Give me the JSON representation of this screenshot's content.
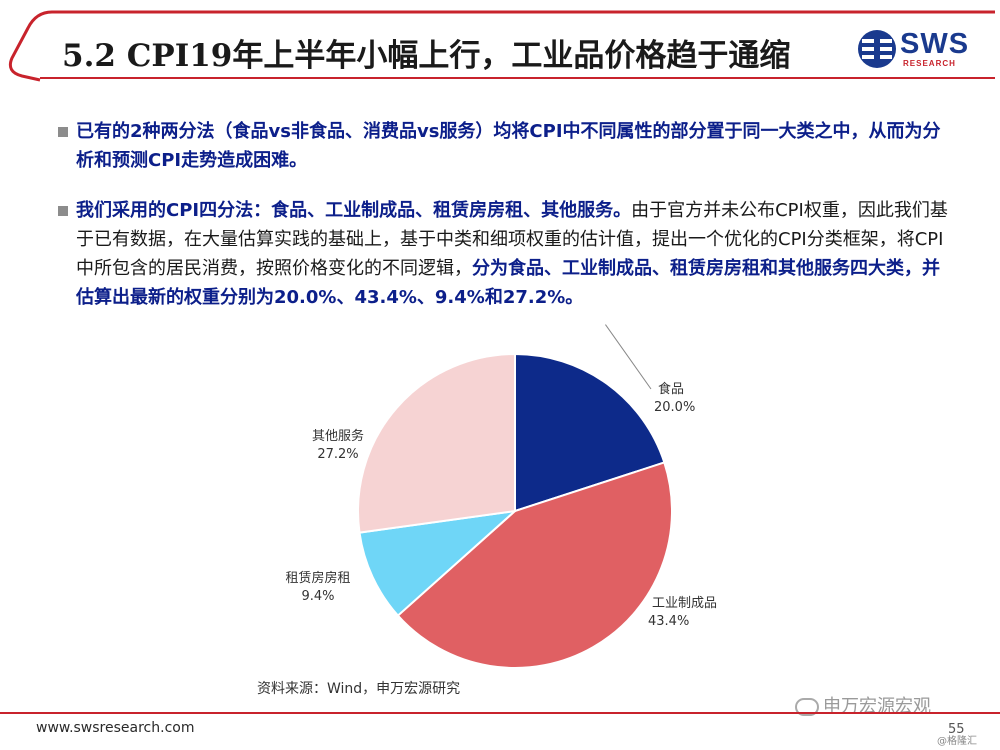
{
  "header": {
    "title": "5.2 CPI19年上半年小幅上行，工业品价格趋于通缩",
    "logo_text": "SWS",
    "logo_subtext": "RESEARCH"
  },
  "bullets": [
    {
      "parts": [
        {
          "text": "已有的2种两分法（食品vs非食品、消费品vs服务）均将CPI中不同属性的部分置于同一大类之中，从而为分析和预测CPI走势造成困难。",
          "bold": true
        }
      ]
    },
    {
      "parts": [
        {
          "text": "我们采用的CPI四分法：食品、工业制成品、租赁房房租、其他服务。",
          "bold": true
        },
        {
          "text": "由于官方并未公布CPI权重，因此我们基于已有数据，在大量估算实践的基础上，基于中类和细项权重的估计值，提出一个优化的CPI分类框架，将CPI中所包含的居民消费，按照价格变化的不同逻辑，",
          "bold": false
        },
        {
          "text": "分为食品、工业制成品、租赁房房租和其他服务四大类，并估算出最新的权重分别为20.0%、43.4%、9.4%和27.2%。",
          "bold": true
        }
      ]
    }
  ],
  "chart_data": {
    "type": "pie",
    "slices": [
      {
        "label": "食品",
        "value": 20.0,
        "value_label": "20.0%",
        "color": "#0d2a8a"
      },
      {
        "label": "工业制成品",
        "value": 43.4,
        "value_label": "43.4%",
        "color": "#e06063"
      },
      {
        "label": "租赁房房租",
        "value": 9.4,
        "value_label": "9.4%",
        "color": "#6fd6f7"
      },
      {
        "label": "其他服务",
        "value": 27.2,
        "value_label": "27.2%",
        "color": "#f6d3d3"
      }
    ],
    "start_angle": "12 o'clock",
    "direction": "clockwise"
  },
  "source": "资料来源：Wind，申万宏源研究",
  "footer": {
    "url": "www.swsresearch.com",
    "page_number": "55",
    "wechat_watermark": "申万宏源宏观",
    "corner_watermark": "@格隆汇"
  },
  "colors": {
    "accent_red": "#c8232c",
    "brand_blue": "#1a3a8e",
    "highlight_blue": "#0c1f8a"
  }
}
